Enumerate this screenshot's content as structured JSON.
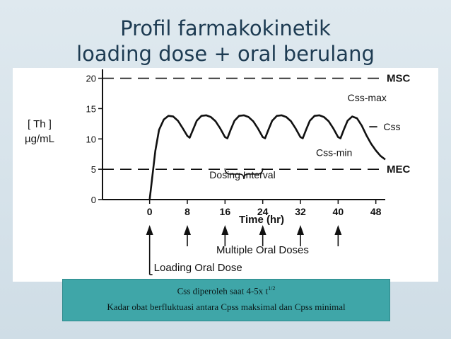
{
  "slide": {
    "title_line1": "Profil farmakokinetik",
    "title_line2": "loading dose + oral berulang",
    "note_line1_text": "Css diperoleh saat 4-5x t",
    "note_line1_sup": "1/2",
    "note_line2": "Kadar obat berfluktuasi antara Cpss maksimal dan Cpss minimal",
    "colors": {
      "title": "#1d3b52",
      "note_box": "#3fa6a8",
      "ink": "#111111"
    }
  },
  "chart_data": {
    "type": "line",
    "ylabel_line1": "[ Th ]",
    "ylabel_line2": "µg/mL",
    "xlabel": "Time (hr)",
    "xlim": [
      -10,
      50
    ],
    "ylim": [
      0,
      21
    ],
    "x_ticks": [
      0,
      8,
      16,
      24,
      32,
      40,
      48
    ],
    "y_ticks": [
      0,
      5,
      10,
      15,
      20
    ],
    "grid": false,
    "reference_lines": [
      {
        "label": "MSC",
        "y": 20
      },
      {
        "label": "MEC",
        "y": 5
      }
    ],
    "annotations": {
      "css_max": "Css-max",
      "css": "Css",
      "css_min": "Css-min",
      "dosing_interval": "Dosing Interval",
      "multiple_doses": "Multiple Oral Doses",
      "loading_dose": "Loading Oral Dose"
    },
    "dose_times": [
      0,
      8,
      16,
      24,
      32,
      40
    ],
    "dosing_interval_range": [
      16,
      24
    ],
    "css_level": 12,
    "series": [
      {
        "values": [
          [
            0,
            0
          ],
          [
            0.6,
            4
          ],
          [
            1.2,
            8
          ],
          [
            2,
            11.5
          ],
          [
            3,
            13.2
          ],
          [
            4,
            13.8
          ],
          [
            5,
            13.7
          ],
          [
            6,
            13
          ],
          [
            7,
            11.8
          ],
          [
            8,
            10.5
          ],
          [
            8.5,
            10.2
          ],
          [
            9.2,
            11.5
          ],
          [
            10,
            13
          ],
          [
            11,
            13.8
          ],
          [
            12,
            13.9
          ],
          [
            13,
            13.6
          ],
          [
            14,
            12.9
          ],
          [
            15,
            11.7
          ],
          [
            16,
            10.3
          ],
          [
            16.5,
            10.1
          ],
          [
            17.2,
            11.5
          ],
          [
            18,
            13
          ],
          [
            19,
            13.8
          ],
          [
            20,
            13.9
          ],
          [
            21,
            13.6
          ],
          [
            22,
            12.9
          ],
          [
            23,
            11.7
          ],
          [
            24,
            10.3
          ],
          [
            24.5,
            10.1
          ],
          [
            25.2,
            11.5
          ],
          [
            26,
            13
          ],
          [
            27,
            13.8
          ],
          [
            28,
            13.9
          ],
          [
            29,
            13.6
          ],
          [
            30,
            12.9
          ],
          [
            31,
            11.7
          ],
          [
            32,
            10.3
          ],
          [
            32.5,
            10.1
          ],
          [
            33.2,
            11.5
          ],
          [
            34,
            13
          ],
          [
            35,
            13.8
          ],
          [
            36,
            13.9
          ],
          [
            37,
            13.6
          ],
          [
            38,
            12.9
          ],
          [
            39,
            11.7
          ],
          [
            40,
            10.3
          ],
          [
            40.5,
            10.1
          ],
          [
            41.2,
            11.5
          ],
          [
            42,
            13
          ],
          [
            43,
            13.7
          ],
          [
            44,
            13.4
          ],
          [
            45,
            12.2
          ],
          [
            46,
            10.6
          ],
          [
            47,
            9.2
          ],
          [
            48,
            8.1
          ],
          [
            49,
            7.2
          ],
          [
            50,
            6.6
          ]
        ]
      }
    ]
  }
}
